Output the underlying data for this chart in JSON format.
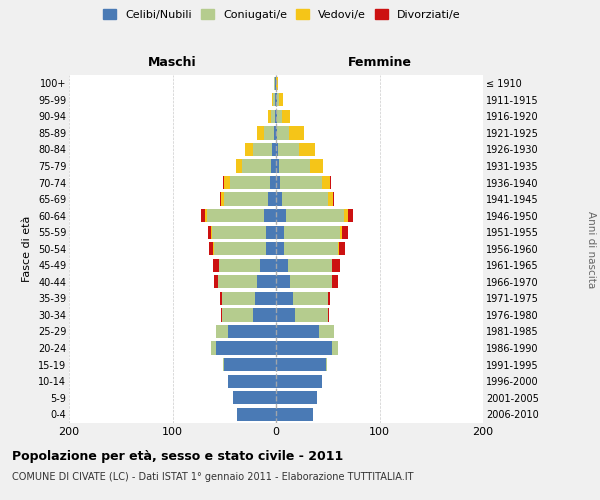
{
  "age_groups": [
    "0-4",
    "5-9",
    "10-14",
    "15-19",
    "20-24",
    "25-29",
    "30-34",
    "35-39",
    "40-44",
    "45-49",
    "50-54",
    "55-59",
    "60-64",
    "65-69",
    "70-74",
    "75-79",
    "80-84",
    "85-89",
    "90-94",
    "95-99",
    "100+"
  ],
  "birth_years": [
    "2006-2010",
    "2001-2005",
    "1996-2000",
    "1991-1995",
    "1986-1990",
    "1981-1985",
    "1976-1980",
    "1971-1975",
    "1966-1970",
    "1961-1965",
    "1956-1960",
    "1951-1955",
    "1946-1950",
    "1941-1945",
    "1936-1940",
    "1931-1935",
    "1926-1930",
    "1921-1925",
    "1916-1920",
    "1911-1915",
    "≤ 1910"
  ],
  "males": {
    "celibi": [
      38,
      42,
      46,
      50,
      58,
      46,
      22,
      20,
      18,
      15,
      10,
      10,
      12,
      8,
      6,
      5,
      4,
      2,
      1,
      1,
      1
    ],
    "coniugati": [
      0,
      0,
      0,
      1,
      5,
      12,
      30,
      32,
      38,
      40,
      50,
      52,
      55,
      42,
      38,
      28,
      18,
      10,
      4,
      2,
      1
    ],
    "vedovi": [
      0,
      0,
      0,
      0,
      0,
      0,
      0,
      0,
      0,
      0,
      1,
      1,
      2,
      3,
      6,
      6,
      8,
      6,
      3,
      1,
      0
    ],
    "divorziati": [
      0,
      0,
      0,
      0,
      0,
      0,
      1,
      2,
      4,
      6,
      4,
      3,
      3,
      1,
      1,
      0,
      0,
      0,
      0,
      0,
      0
    ]
  },
  "females": {
    "nubili": [
      36,
      40,
      44,
      48,
      54,
      42,
      18,
      16,
      14,
      12,
      8,
      8,
      10,
      6,
      4,
      3,
      2,
      1,
      1,
      1,
      0
    ],
    "coniugate": [
      0,
      0,
      0,
      1,
      6,
      14,
      32,
      34,
      40,
      42,
      52,
      54,
      56,
      44,
      40,
      30,
      20,
      12,
      5,
      2,
      0
    ],
    "vedove": [
      0,
      0,
      0,
      0,
      0,
      0,
      0,
      0,
      0,
      0,
      1,
      2,
      4,
      5,
      8,
      12,
      16,
      14,
      8,
      4,
      2
    ],
    "divorziate": [
      0,
      0,
      0,
      0,
      0,
      0,
      1,
      2,
      6,
      8,
      6,
      6,
      4,
      1,
      1,
      0,
      0,
      0,
      0,
      0,
      0
    ]
  },
  "colors": {
    "celibi_nubili": "#4a7ab5",
    "coniugati": "#b5cc8e",
    "vedovi": "#f5c518",
    "divorziati": "#cc1111"
  },
  "xlim": 200,
  "title": "Popolazione per età, sesso e stato civile - 2011",
  "subtitle": "COMUNE DI CIVATE (LC) - Dati ISTAT 1° gennaio 2011 - Elaborazione TUTTITALIA.IT",
  "ylabel": "Fasce di età",
  "xlabel_left": "Maschi",
  "xlabel_right": "Femmine",
  "legend_labels": [
    "Celibi/Nubili",
    "Coniugati/e",
    "Vedovi/e",
    "Divorziati/e"
  ],
  "bg_color": "#f0f0f0",
  "plot_bg": "#ffffff",
  "anni_label": "Anni di nascita"
}
